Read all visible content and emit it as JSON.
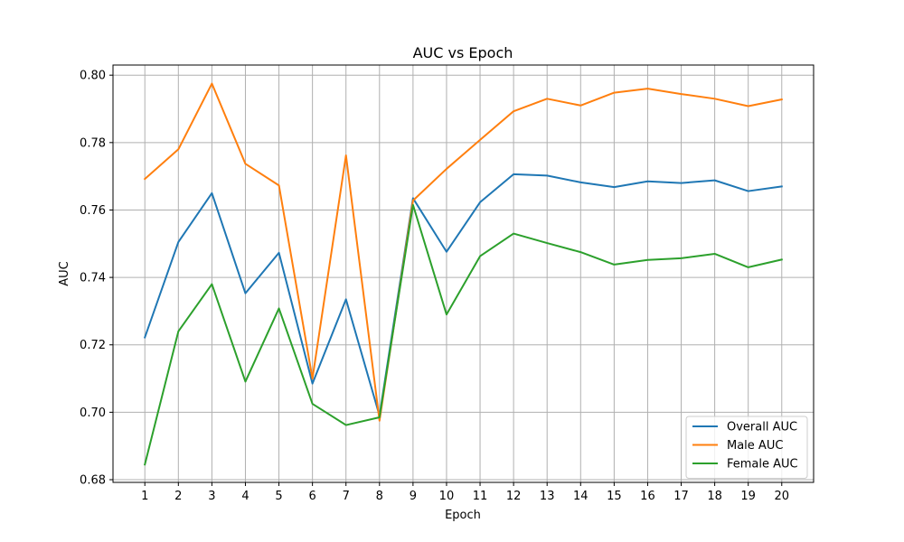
{
  "chart_data": {
    "type": "line",
    "title": "AUC vs Epoch",
    "xlabel": "Epoch",
    "ylabel": "AUC",
    "x": [
      1,
      2,
      3,
      4,
      5,
      6,
      7,
      8,
      9,
      10,
      11,
      12,
      13,
      14,
      15,
      16,
      17,
      18,
      19,
      20
    ],
    "xlim": [
      0.05,
      20.95
    ],
    "ylim": [
      0.6792,
      0.803
    ],
    "yticks": [
      0.68,
      0.7,
      0.72,
      0.74,
      0.76,
      0.78,
      0.8
    ],
    "ytick_labels": [
      "0.68",
      "0.70",
      "0.72",
      "0.74",
      "0.76",
      "0.78",
      "0.80"
    ],
    "grid": true,
    "legend_position": "lower-right",
    "series": [
      {
        "name": "Overall AUC",
        "color": "#1f77b4",
        "values": [
          0.7222,
          0.7505,
          0.765,
          0.7353,
          0.7473,
          0.7085,
          0.7335,
          0.699,
          0.7635,
          0.7476,
          0.7623,
          0.7706,
          0.7702,
          0.7682,
          0.7668,
          0.7685,
          0.768,
          0.7688,
          0.7656,
          0.767
        ]
      },
      {
        "name": "Male AUC",
        "color": "#ff7f0e",
        "values": [
          0.7692,
          0.778,
          0.7975,
          0.7737,
          0.7673,
          0.71,
          0.7762,
          0.6975,
          0.7628,
          0.7722,
          0.7808,
          0.7893,
          0.793,
          0.791,
          0.7948,
          0.796,
          0.7944,
          0.793,
          0.7908,
          0.7928
        ]
      },
      {
        "name": "Female AUC",
        "color": "#2ca02c",
        "values": [
          0.6845,
          0.724,
          0.738,
          0.7091,
          0.7308,
          0.7025,
          0.6962,
          0.6985,
          0.7615,
          0.729,
          0.7463,
          0.753,
          0.7502,
          0.7475,
          0.7438,
          0.7452,
          0.7457,
          0.747,
          0.743,
          0.7453
        ]
      }
    ]
  }
}
